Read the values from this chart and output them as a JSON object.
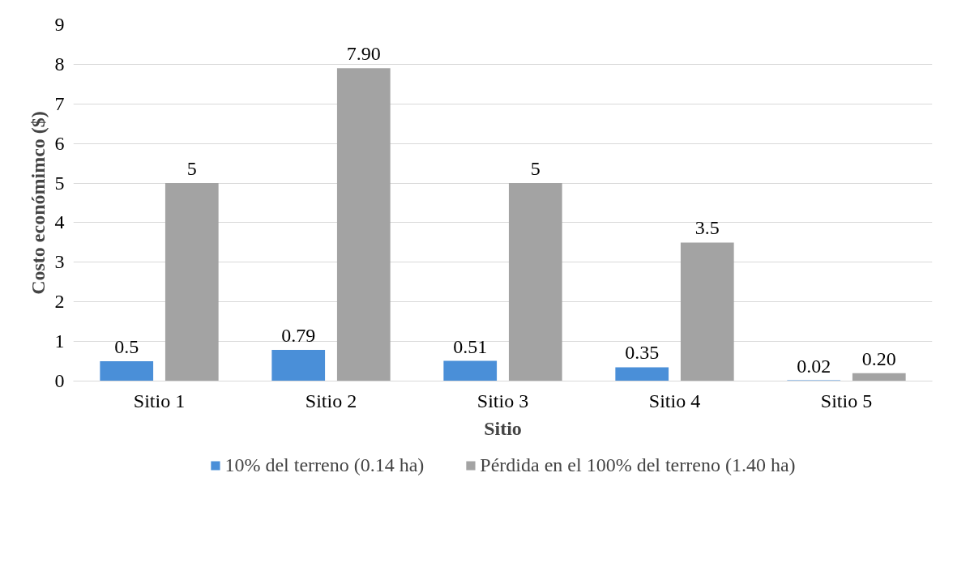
{
  "chart_data": {
    "type": "bar",
    "xlabel": "Sitio",
    "ylabel": "Costo económimco ($)",
    "categories": [
      "Sitio 1",
      "Sitio 2",
      "Sitio 3",
      "Sitio 4",
      "Sitio 5"
    ],
    "series": [
      {
        "name": "10% del terreno (0.14 ha)",
        "color": "#4a8fd8",
        "values": [
          0.5,
          0.79,
          0.51,
          0.35,
          0.02
        ],
        "value_labels": [
          "0.5",
          "0.79",
          "0.51",
          "0.35",
          "0.02"
        ]
      },
      {
        "name": "Pérdida en el 100% del terreno (1.40 ha)",
        "color": "#a3a3a3",
        "values": [
          5,
          7.9,
          5,
          3.5,
          0.2
        ],
        "value_labels": [
          "5",
          "7.90",
          "5",
          "3.5",
          "0.20"
        ]
      }
    ],
    "ylim": [
      0,
      9
    ],
    "yticks": [
      0,
      1,
      2,
      3,
      4,
      5,
      6,
      7,
      8,
      9
    ],
    "grid": "y",
    "legend": "bottom"
  }
}
